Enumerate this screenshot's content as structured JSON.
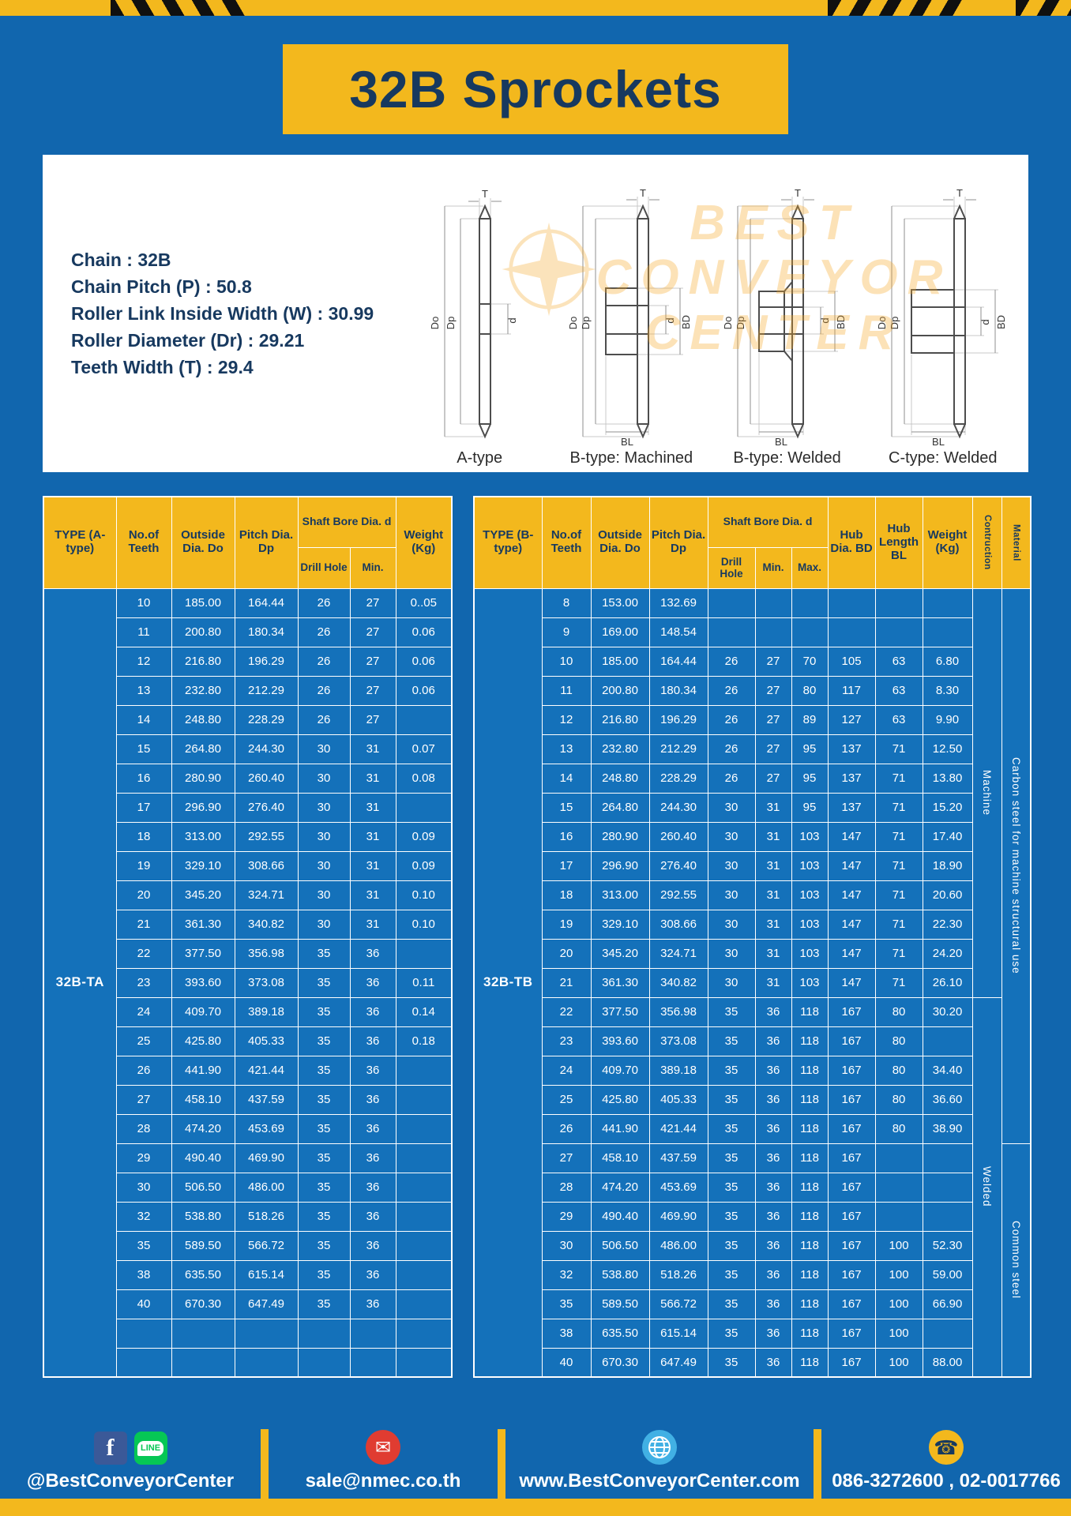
{
  "page": {
    "title": "32B Sprockets"
  },
  "colors": {
    "page_blue": "#1166ae",
    "cell_blue": "#1471ba",
    "yellow": "#f3b81d",
    "navy": "#17395f",
    "red_badge": "#e03c31",
    "line_green": "#06c755",
    "facebook_blue": "#3b5998",
    "globe_blue": "#41b0e4"
  },
  "specs": {
    "lines": [
      "Chain : 32B",
      "Chain Pitch (P) : 50.8",
      "Roller Link Inside Width (W) : 30.99",
      "Roller Diameter (Dr) : 29.21",
      "Teeth Width (T) : 29.4"
    ]
  },
  "diagram": {
    "watermark_lines": [
      "BEST",
      "CONVEYOR",
      "CENTER"
    ],
    "labels": [
      "A-type",
      "B-type: Machined",
      "B-type: Welded",
      "C-type: Welded"
    ],
    "dims": {
      "T": "T",
      "Do": "Do",
      "Dp": "Dp",
      "d": "d",
      "BD": "BD",
      "BL": "BL"
    }
  },
  "table_a": {
    "type_label": "32B-TA",
    "headers": {
      "type": "TYPE (A-type)",
      "teeth": "No.of Teeth",
      "outside": "Outside Dia. Do",
      "pitch": "Pitch Dia. Dp",
      "shaft": "Shaft Bore Dia. d",
      "drill": "Drill Hole",
      "min": "Min.",
      "weight": "Weight (Kg)"
    },
    "rows": [
      [
        "10",
        "185.00",
        "164.44",
        "26",
        "27",
        "0..05"
      ],
      [
        "11",
        "200.80",
        "180.34",
        "26",
        "27",
        "0.06"
      ],
      [
        "12",
        "216.80",
        "196.29",
        "26",
        "27",
        "0.06"
      ],
      [
        "13",
        "232.80",
        "212.29",
        "26",
        "27",
        "0.06"
      ],
      [
        "14",
        "248.80",
        "228.29",
        "26",
        "27",
        ""
      ],
      [
        "15",
        "264.80",
        "244.30",
        "30",
        "31",
        "0.07"
      ],
      [
        "16",
        "280.90",
        "260.40",
        "30",
        "31",
        "0.08"
      ],
      [
        "17",
        "296.90",
        "276.40",
        "30",
        "31",
        ""
      ],
      [
        "18",
        "313.00",
        "292.55",
        "30",
        "31",
        "0.09"
      ],
      [
        "19",
        "329.10",
        "308.66",
        "30",
        "31",
        "0.09"
      ],
      [
        "20",
        "345.20",
        "324.71",
        "30",
        "31",
        "0.10"
      ],
      [
        "21",
        "361.30",
        "340.82",
        "30",
        "31",
        "0.10"
      ],
      [
        "22",
        "377.50",
        "356.98",
        "35",
        "36",
        ""
      ],
      [
        "23",
        "393.60",
        "373.08",
        "35",
        "36",
        "0.11"
      ],
      [
        "24",
        "409.70",
        "389.18",
        "35",
        "36",
        "0.14"
      ],
      [
        "25",
        "425.80",
        "405.33",
        "35",
        "36",
        "0.18"
      ],
      [
        "26",
        "441.90",
        "421.44",
        "35",
        "36",
        ""
      ],
      [
        "27",
        "458.10",
        "437.59",
        "35",
        "36",
        ""
      ],
      [
        "28",
        "474.20",
        "453.69",
        "35",
        "36",
        ""
      ],
      [
        "29",
        "490.40",
        "469.90",
        "35",
        "36",
        ""
      ],
      [
        "30",
        "506.50",
        "486.00",
        "35",
        "36",
        ""
      ],
      [
        "32",
        "538.80",
        "518.26",
        "35",
        "36",
        ""
      ],
      [
        "35",
        "589.50",
        "566.72",
        "35",
        "36",
        ""
      ],
      [
        "38",
        "635.50",
        "615.14",
        "35",
        "36",
        ""
      ],
      [
        "40",
        "670.30",
        "647.49",
        "35",
        "36",
        ""
      ],
      [
        "",
        "",
        "",
        "",
        "",
        ""
      ],
      [
        "",
        "",
        "",
        "",
        "",
        ""
      ]
    ]
  },
  "table_b": {
    "type_label": "32B-TB",
    "headers": {
      "type": "TYPE (B-type)",
      "teeth": "No.of Teeth",
      "outside": "Outside Dia. Do",
      "pitch": "Pitch Dia. Dp",
      "shaft": "Shaft Bore Dia. d",
      "drill": "Drill Hole",
      "min": "Min.",
      "max": "Max.",
      "hub_dia": "Hub Dia. BD",
      "hub_len": "Hub Length BL",
      "weight": "Weight (Kg)",
      "construction": "Contruction",
      "material": "Material"
    },
    "rows": [
      [
        "8",
        "153.00",
        "132.69",
        "",
        "",
        "",
        "",
        "",
        ""
      ],
      [
        "9",
        "169.00",
        "148.54",
        "",
        "",
        "",
        "",
        "",
        ""
      ],
      [
        "10",
        "185.00",
        "164.44",
        "26",
        "27",
        "70",
        "105",
        "63",
        "6.80"
      ],
      [
        "11",
        "200.80",
        "180.34",
        "26",
        "27",
        "80",
        "117",
        "63",
        "8.30"
      ],
      [
        "12",
        "216.80",
        "196.29",
        "26",
        "27",
        "89",
        "127",
        "63",
        "9.90"
      ],
      [
        "13",
        "232.80",
        "212.29",
        "26",
        "27",
        "95",
        "137",
        "71",
        "12.50"
      ],
      [
        "14",
        "248.80",
        "228.29",
        "26",
        "27",
        "95",
        "137",
        "71",
        "13.80"
      ],
      [
        "15",
        "264.80",
        "244.30",
        "30",
        "31",
        "95",
        "137",
        "71",
        "15.20"
      ],
      [
        "16",
        "280.90",
        "260.40",
        "30",
        "31",
        "103",
        "147",
        "71",
        "17.40"
      ],
      [
        "17",
        "296.90",
        "276.40",
        "30",
        "31",
        "103",
        "147",
        "71",
        "18.90"
      ],
      [
        "18",
        "313.00",
        "292.55",
        "30",
        "31",
        "103",
        "147",
        "71",
        "20.60"
      ],
      [
        "19",
        "329.10",
        "308.66",
        "30",
        "31",
        "103",
        "147",
        "71",
        "22.30"
      ],
      [
        "20",
        "345.20",
        "324.71",
        "30",
        "31",
        "103",
        "147",
        "71",
        "24.20"
      ],
      [
        "21",
        "361.30",
        "340.82",
        "30",
        "31",
        "103",
        "147",
        "71",
        "26.10"
      ],
      [
        "22",
        "377.50",
        "356.98",
        "35",
        "36",
        "118",
        "167",
        "80",
        "30.20"
      ],
      [
        "23",
        "393.60",
        "373.08",
        "35",
        "36",
        "118",
        "167",
        "80",
        ""
      ],
      [
        "24",
        "409.70",
        "389.18",
        "35",
        "36",
        "118",
        "167",
        "80",
        "34.40"
      ],
      [
        "25",
        "425.80",
        "405.33",
        "35",
        "36",
        "118",
        "167",
        "80",
        "36.60"
      ],
      [
        "26",
        "441.90",
        "421.44",
        "35",
        "36",
        "118",
        "167",
        "80",
        "38.90"
      ],
      [
        "27",
        "458.10",
        "437.59",
        "35",
        "36",
        "118",
        "167",
        "",
        ""
      ],
      [
        "28",
        "474.20",
        "453.69",
        "35",
        "36",
        "118",
        "167",
        "",
        ""
      ],
      [
        "29",
        "490.40",
        "469.90",
        "35",
        "36",
        "118",
        "167",
        "",
        ""
      ],
      [
        "30",
        "506.50",
        "486.00",
        "35",
        "36",
        "118",
        "167",
        "100",
        "52.30"
      ],
      [
        "32",
        "538.80",
        "518.26",
        "35",
        "36",
        "118",
        "167",
        "100",
        "59.00"
      ],
      [
        "35",
        "589.50",
        "566.72",
        "35",
        "36",
        "118",
        "167",
        "100",
        "66.90"
      ],
      [
        "38",
        "635.50",
        "615.14",
        "35",
        "36",
        "118",
        "167",
        "100",
        ""
      ],
      [
        "40",
        "670.30",
        "647.49",
        "35",
        "36",
        "118",
        "167",
        "100",
        "88.00"
      ]
    ],
    "side_columns": [
      {
        "name": "construction",
        "groups": [
          {
            "label": "Machine",
            "span": 14
          },
          {
            "label": "Welded",
            "span": 13
          }
        ]
      },
      {
        "name": "material",
        "groups": [
          {
            "label": "Carbon steel for machine structural use",
            "span": 19
          },
          {
            "label": "Common steel",
            "span": 8
          }
        ]
      }
    ]
  },
  "footer": {
    "social_handle": "@BestConveyorCenter",
    "email": "sale@nmec.co.th",
    "website": "www.BestConveyorCenter.com",
    "phones": "086-3272600 , 02-0017766",
    "icons": {
      "facebook_glyph": "f",
      "line_text": "LINE",
      "email_glyph": "✉",
      "phone_glyph": "☎"
    }
  }
}
